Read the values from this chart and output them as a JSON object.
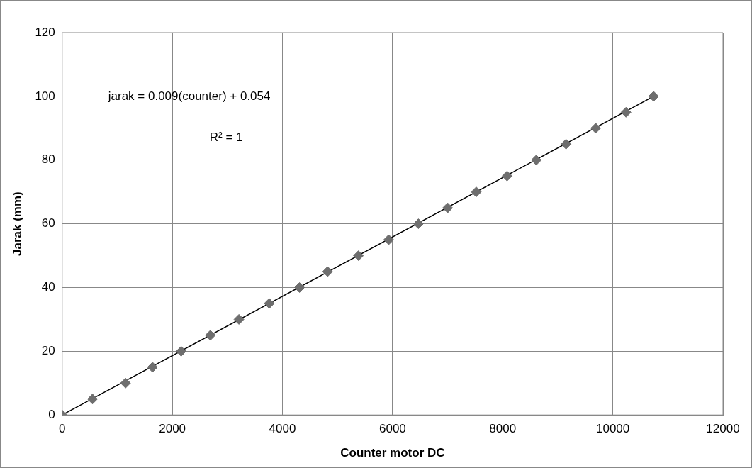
{
  "chart_data": {
    "type": "scatter",
    "xlabel": "Counter motor DC",
    "ylabel": "Jarak (mm)",
    "annotations": [
      "jarak = 0.009(counter) + 0.054",
      "R² = 1"
    ],
    "series": [
      {
        "type": "scatter",
        "color": "#6e6e6e",
        "marker": "diamond",
        "x": [
          0,
          550,
          1150,
          1640,
          2160,
          2690,
          3210,
          3760,
          4310,
          4820,
          5380,
          5930,
          6470,
          7000,
          7520,
          8080,
          8610,
          9150,
          9690,
          10240,
          10740
        ],
        "values": [
          0,
          5,
          10,
          15,
          20,
          25,
          30,
          35,
          40,
          45,
          50,
          55,
          60,
          65,
          70,
          75,
          80,
          85,
          90,
          95,
          100
        ]
      },
      {
        "type": "line",
        "color": "#000000",
        "marker": "none",
        "x": [
          0,
          10740
        ],
        "values": [
          0,
          100
        ]
      }
    ],
    "xlim": [
      0,
      12000
    ],
    "xticks": [
      0,
      2000,
      4000,
      6000,
      8000,
      10000,
      12000
    ],
    "ylim": [
      0,
      120
    ],
    "yticks": [
      0,
      20,
      40,
      60,
      80,
      100,
      120
    ],
    "grid": true,
    "legend": false
  }
}
